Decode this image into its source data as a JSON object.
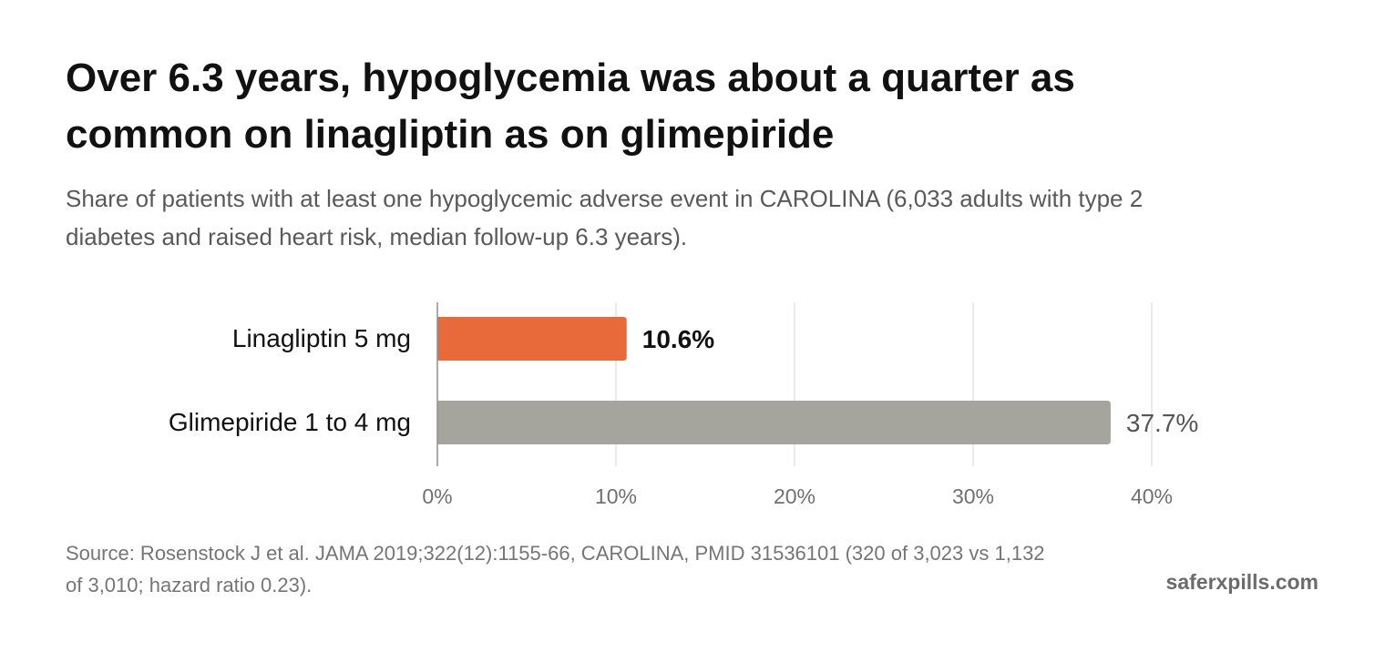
{
  "title": "Over 6.3 years, hypoglycemia was about a quarter as common on linagliptin as on glimepiride",
  "subtitle": "Share of patients with at least one hypoglycemic adverse event in CAROLINA (6,033 adults with type 2 diabetes and raised heart risk, median follow-up 6.3 years).",
  "source": "Source: Rosenstock J et al. JAMA 2019;322(12):1155-66, CAROLINA, PMID 31536101 (320 of 3,023 vs 1,132 of 3,010; hazard ratio 0.23).",
  "brand": "saferxpills.com",
  "colors": {
    "highlight": "#e8693a",
    "comparison": "#a5a59d",
    "grid": "#e3e3e3",
    "axis": "#8f8f8f"
  },
  "chart_data": {
    "type": "bar",
    "orientation": "horizontal",
    "categories": [
      "Linagliptin 5 mg",
      "Glimepiride 1 to 4 mg"
    ],
    "values": [
      10.6,
      37.7
    ],
    "value_labels": [
      "10.6%",
      "37.7%"
    ],
    "xlim": [
      0,
      40
    ],
    "xticks": [
      0,
      10,
      20,
      30,
      40
    ],
    "xtick_labels": [
      "0%",
      "10%",
      "20%",
      "30%",
      "40%"
    ],
    "grid": true,
    "highlight_index": 0
  }
}
